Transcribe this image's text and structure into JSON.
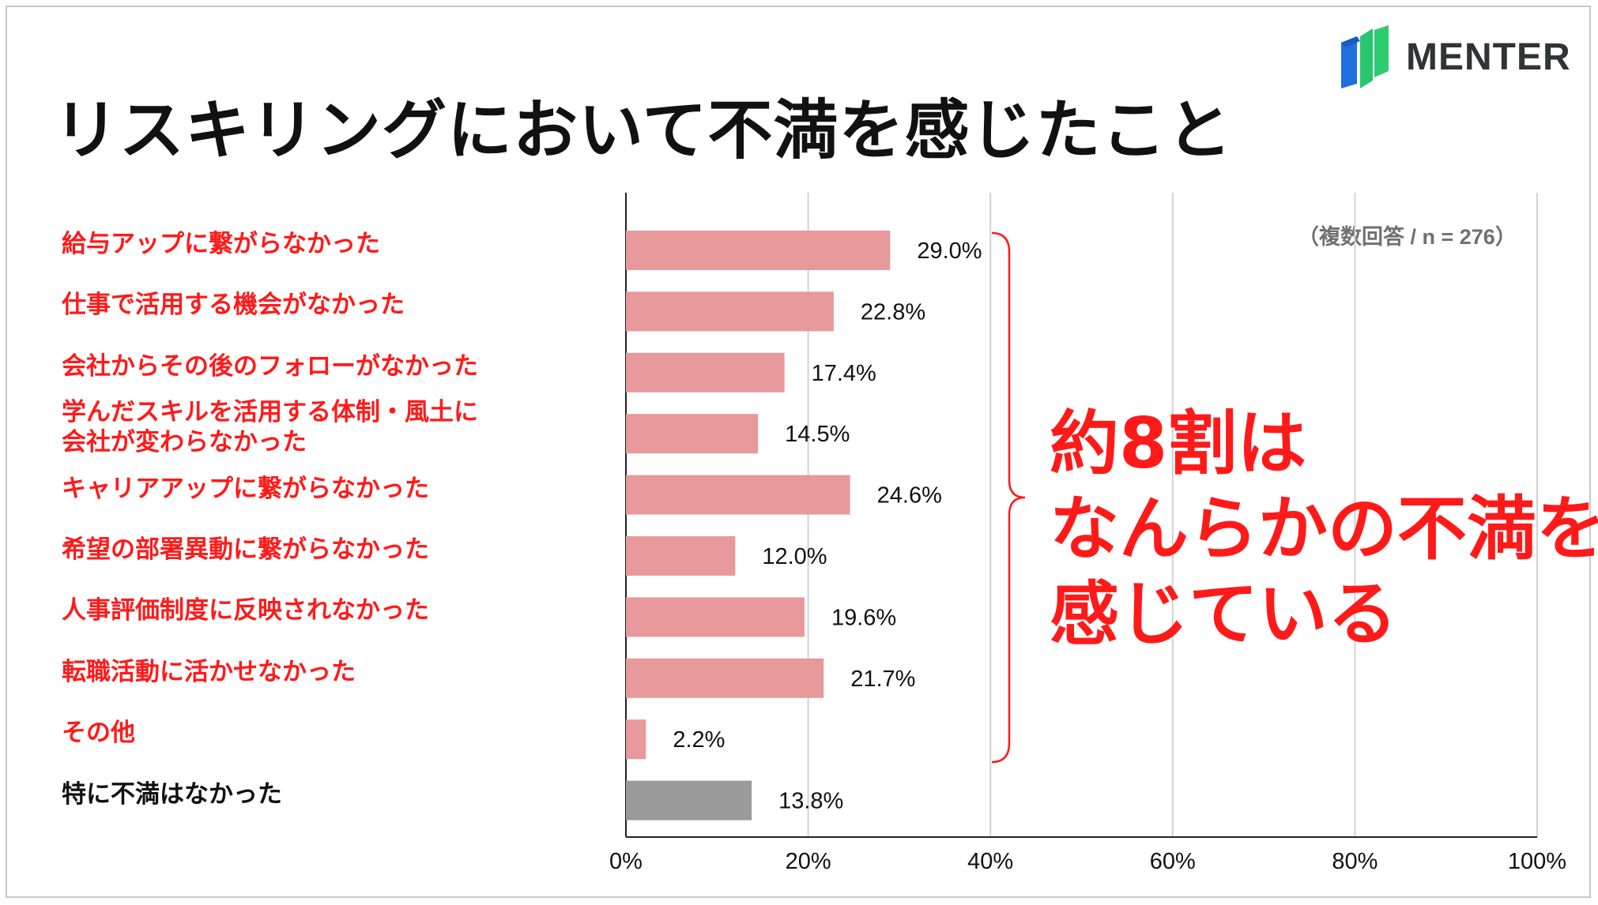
{
  "title": "リスキリングにおいて不満を感じたこと",
  "logo": {
    "text": "MENTER",
    "icon": "menter-logo-icon"
  },
  "note": "（複数回答 / n = 276）",
  "callout": {
    "lines": [
      "約8割は",
      "なんらかの不満を",
      "感じている"
    ]
  },
  "colors": {
    "highlight": "#ff1a1a",
    "bar_pink": "#e8999b",
    "bar_gray": "#9a9a9a"
  },
  "chart_data": {
    "type": "bar",
    "orientation": "horizontal",
    "categories": [
      "給与アップに繋がらなかった",
      "仕事で活用する機会がなかった",
      "会社からその後のフォローがなかった",
      "学んだスキルを活用する体制・風土に\n会社が変わらなかった",
      "キャリアアップに繋がらなかった",
      "希望の部署異動に繋がらなかった",
      "人事評価制度に反映されなかった",
      "転職活動に活かせなかった",
      "その他",
      "特に不満はなかった"
    ],
    "values": [
      29.0,
      22.8,
      17.4,
      14.5,
      24.6,
      12.0,
      19.6,
      21.7,
      2.2,
      13.8
    ],
    "value_labels": [
      "29.0%",
      "22.8%",
      "17.4%",
      "14.5%",
      "24.6%",
      "12.0%",
      "19.6%",
      "21.7%",
      "2.2%",
      "13.8%"
    ],
    "xlim": [
      0,
      100
    ],
    "xticks": [
      "0%",
      "20%",
      "40%",
      "60%",
      "80%",
      "100%"
    ],
    "grid": "vertical",
    "legend": "none"
  }
}
